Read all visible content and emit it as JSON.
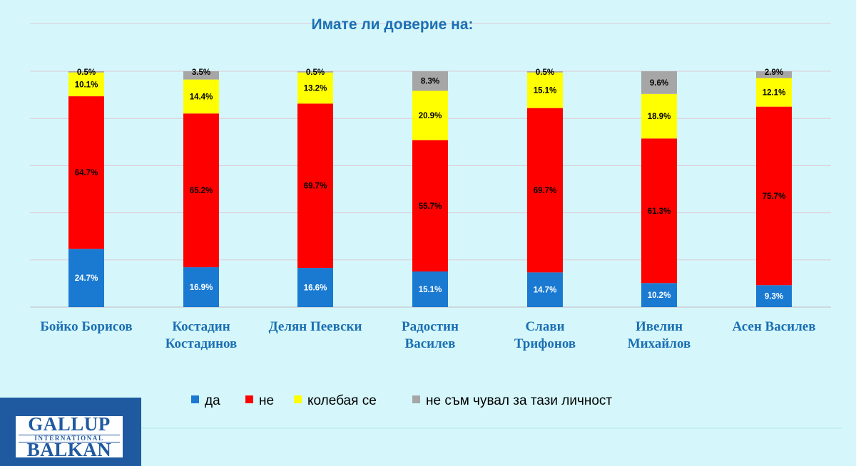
{
  "chart_data": {
    "type": "bar",
    "stacked": true,
    "title": "Имате  ли доверие на:",
    "categories": [
      [
        "Бойко Борисов"
      ],
      [
        "Костадин",
        "Костадинов"
      ],
      [
        "Делян Пеевски"
      ],
      [
        "Радостин",
        "Василев"
      ],
      [
        "Слави",
        "Трифонов"
      ],
      [
        "Ивелин",
        "Михайлов"
      ],
      [
        "Асен Василев"
      ]
    ],
    "series": [
      {
        "name": "да",
        "color": "#1a7ad2",
        "values": [
          24.7,
          16.9,
          16.6,
          15.1,
          14.7,
          10.2,
          9.3
        ]
      },
      {
        "name": "не",
        "color": "#ff0000",
        "values": [
          64.7,
          65.2,
          69.7,
          55.7,
          69.7,
          61.3,
          75.7
        ]
      },
      {
        "name": "колебая се",
        "color": "#ffff00",
        "values": [
          10.1,
          14.4,
          13.2,
          20.9,
          15.1,
          18.9,
          12.1
        ]
      },
      {
        "name": "не съм чувал за тази личност",
        "color": "#a6a6a6",
        "values": [
          0.5,
          3.5,
          0.5,
          8.3,
          0.5,
          9.6,
          2.9
        ]
      }
    ],
    "ylim": [
      0,
      100
    ],
    "grid": true,
    "legend_position": "bottom"
  },
  "logo": {
    "line1": "GALLUP",
    "line2": "INTERNATIONAL",
    "line3": "BALKAN"
  },
  "colors": {
    "background": "#d5f7fb",
    "title": "#1c6fb3",
    "gridline": "#e0c8d4",
    "logo": "#1f5aa0"
  }
}
